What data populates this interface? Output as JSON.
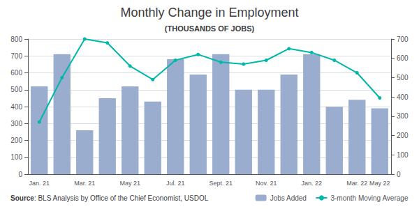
{
  "chart_data": {
    "type": "bar",
    "title": "Monthly Change in Employment",
    "subtitle": "(THOUSANDS OF JOBS)",
    "annotations": [
      "Source",
      ": BLS Analysis by Office of the Chief Economist, USDOL"
    ],
    "categories": [
      "Jan. 21",
      null,
      "Mar. 21",
      null,
      "May 21",
      null,
      "Jul. 21",
      null,
      "Sept. 21",
      null,
      "Nov. 21",
      null,
      "Jan. 22",
      null,
      "Mar. 22",
      "May 22"
    ],
    "series": [
      {
        "name": "Jobs Added",
        "type": "bar",
        "color": "#9aadce",
        "values": [
          520,
          710,
          260,
          450,
          520,
          430,
          680,
          590,
          710,
          500,
          500,
          590,
          710,
          400,
          440,
          390
        ]
      },
      {
        "name": "3-month Moving Average",
        "type": "line",
        "color": "#00b8a9",
        "marker": "circle",
        "axis": "y2",
        "values": [
          270,
          500,
          700,
          680,
          560,
          490,
          590,
          620,
          580,
          570,
          590,
          650,
          630,
          590,
          525,
          395
        ]
      }
    ],
    "ylim": [
      0,
      800
    ],
    "yticks": [
      0,
      100,
      200,
      300,
      400,
      500,
      600,
      700,
      800
    ],
    "y2lim": [
      0,
      700
    ],
    "y2ticks": [
      0,
      100,
      200,
      300,
      400,
      500,
      600,
      700
    ],
    "grid": true,
    "legend": "lower-right"
  }
}
